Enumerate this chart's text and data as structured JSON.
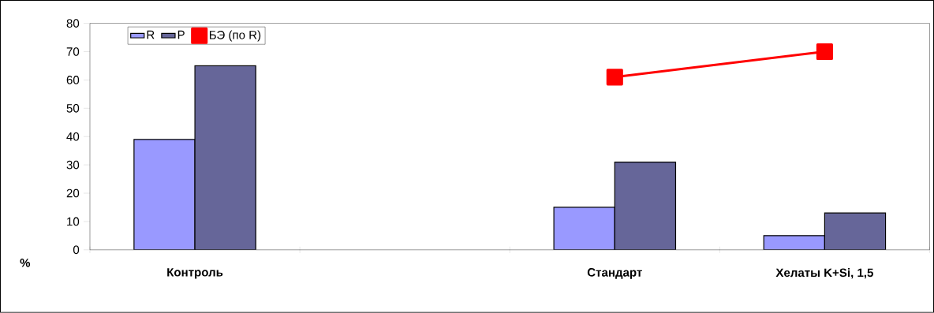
{
  "chart_data": {
    "type": "bar",
    "ylabel": "%",
    "categories": [
      "Контроль",
      null,
      "Стандарт",
      "Хелаты K+Si, 1,5"
    ],
    "series": [
      {
        "name": "R",
        "color": "#9999ff",
        "values": [
          39,
          null,
          15,
          5
        ]
      },
      {
        "name": "P",
        "color": "#666699",
        "values": [
          65,
          null,
          31,
          13
        ]
      },
      {
        "name": "БЭ (по R)",
        "type": "line",
        "color": "#ff0000",
        "marker": "square",
        "line_style": "solid",
        "values": [
          null,
          null,
          61,
          70
        ]
      }
    ],
    "ylim": [
      0,
      80
    ],
    "yticks": [
      0,
      10,
      20,
      30,
      40,
      50,
      60,
      70,
      80
    ],
    "grid": false,
    "legend": "top left"
  }
}
